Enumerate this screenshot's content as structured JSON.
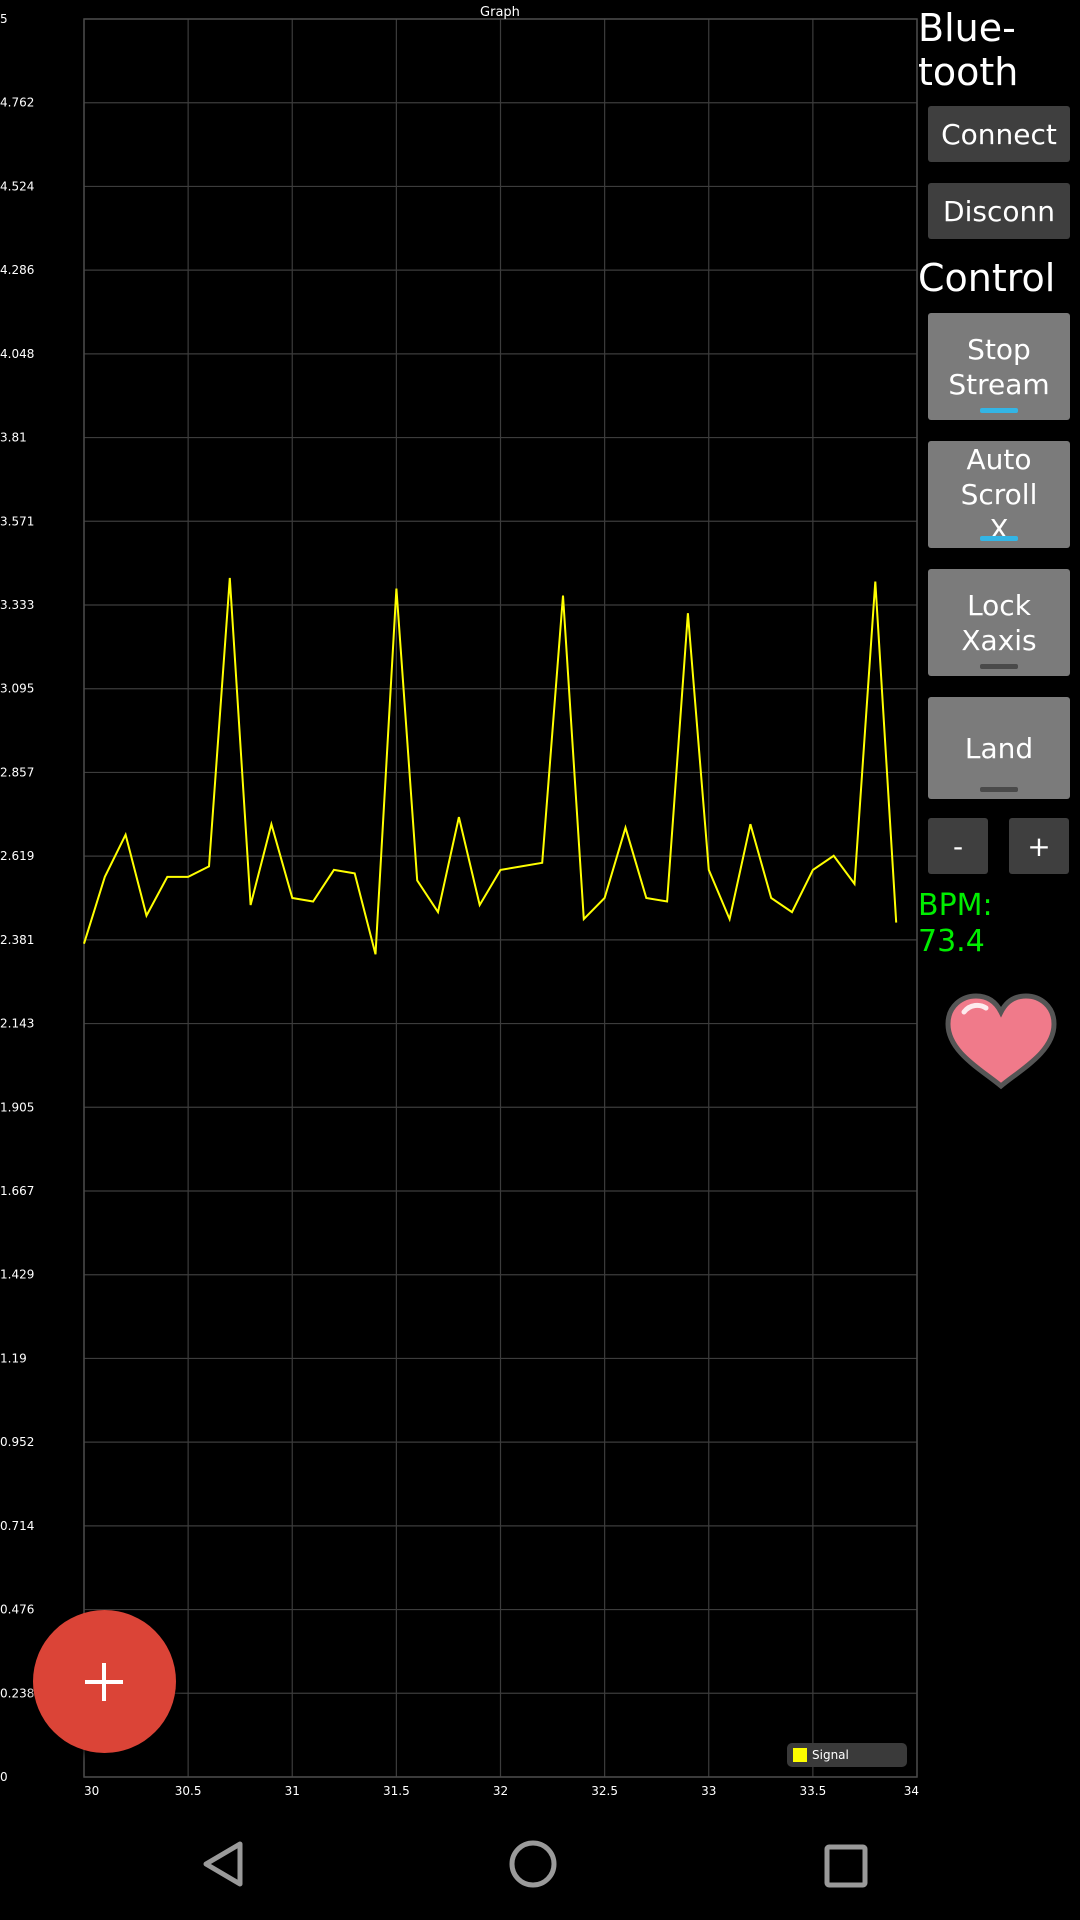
{
  "graph": {
    "title": "Graph",
    "y_tick_labels": [
      "5",
      "4.762",
      "4.524",
      "4.286",
      "4.048",
      "3.81",
      "3.571",
      "3.333",
      "3.095",
      "2.857",
      "2.619",
      "2.381",
      "2.143",
      "1.905",
      "1.667",
      "1.429",
      "1.19",
      "0.952",
      "0.714",
      "0.476",
      "0.238",
      "0"
    ],
    "x_tick_labels": [
      "30",
      "30.5",
      "31",
      "31.5",
      "32",
      "32.5",
      "33",
      "33.5",
      "34"
    ],
    "legend": {
      "label": "Signal",
      "color": "#ffff00"
    }
  },
  "chart_data": {
    "type": "line",
    "title": "Graph",
    "xlabel": "",
    "ylabel": "",
    "xlim": [
      30,
      34
    ],
    "ylim": [
      0,
      5
    ],
    "grid": true,
    "legend_position": "bottom-right",
    "series": [
      {
        "name": "Signal",
        "color": "#ffff00",
        "x": [
          30.0,
          30.1,
          30.2,
          30.3,
          30.4,
          30.5,
          30.6,
          30.7,
          30.8,
          30.9,
          31.0,
          31.1,
          31.2,
          31.3,
          31.4,
          31.5,
          31.6,
          31.7,
          31.8,
          31.9,
          32.0,
          32.1,
          32.2,
          32.3,
          32.4,
          32.5,
          32.6,
          32.7,
          32.8,
          32.9,
          33.0,
          33.1,
          33.2,
          33.3,
          33.4,
          33.5,
          33.6,
          33.7,
          33.8,
          33.9
        ],
        "y": [
          2.37,
          2.56,
          2.68,
          2.45,
          2.56,
          2.56,
          2.59,
          3.41,
          2.48,
          2.71,
          2.5,
          2.49,
          2.58,
          2.57,
          2.34,
          3.38,
          2.55,
          2.46,
          2.73,
          2.48,
          2.58,
          2.59,
          2.6,
          3.36,
          2.44,
          2.5,
          2.7,
          2.5,
          2.49,
          3.31,
          2.58,
          2.44,
          2.71,
          2.5,
          2.46,
          2.58,
          2.62,
          2.54,
          3.4,
          2.43
        ]
      }
    ]
  },
  "sidebar": {
    "bluetooth_title": "Blue-\ntooth",
    "connect_label": "Connect",
    "disconnect_label": "Disconn",
    "control_title": "Control",
    "stop_stream_label": "Stop\nStream",
    "auto_scroll_label": "Auto\nScroll\nX",
    "lock_xaxis_label": "Lock\nXaxis",
    "land_label": "Land",
    "minus_label": "-",
    "plus_label": "+",
    "bpm_label": "BPM:\n73.4",
    "toggle_on_color": "#33b5e5",
    "heart_color": "#f07a8a"
  },
  "fab": {
    "icon": "plus-icon",
    "color": "#db4437"
  },
  "navbar": {
    "icons": [
      "back-icon",
      "home-icon",
      "recents-icon"
    ]
  }
}
